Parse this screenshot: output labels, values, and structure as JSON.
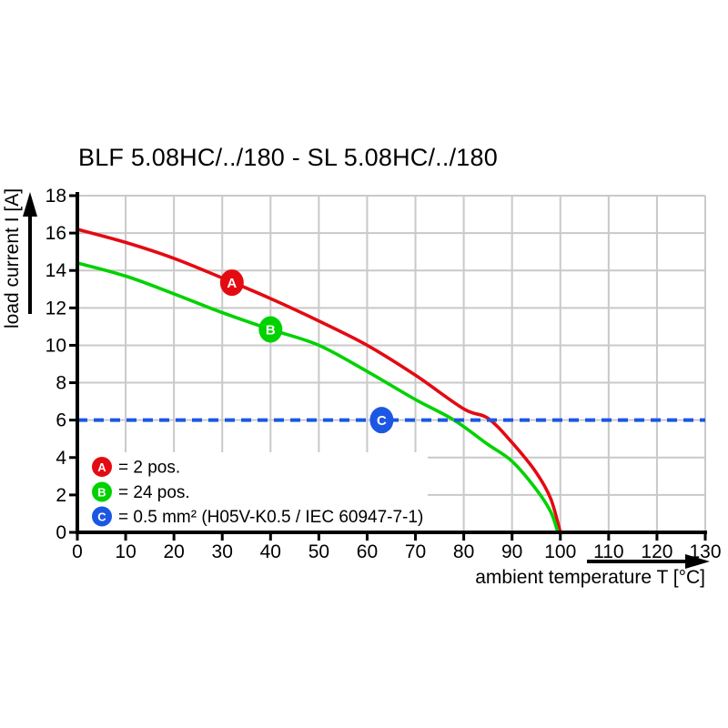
{
  "title": "BLF 5.08HC/../180 - SL 5.08HC/../180",
  "chart_data": {
    "type": "line",
    "title": "BLF 5.08HC/../180 - SL 5.08HC/../180",
    "xlabel": "ambient temperature T [°C]",
    "ylabel": "load current I [A]",
    "xlim": [
      0,
      130
    ],
    "ylim": [
      0,
      18
    ],
    "x_ticks": [
      0,
      10,
      20,
      30,
      40,
      50,
      60,
      70,
      80,
      90,
      100,
      110,
      120,
      130
    ],
    "y_ticks": [
      0,
      2,
      4,
      6,
      8,
      10,
      12,
      14,
      16,
      18
    ],
    "grid": true,
    "legend_position": "inside-bottom-left",
    "series": [
      {
        "name": "A",
        "legend": "= 2 pos.",
        "color": "#e40a12",
        "style": "curve",
        "points": [
          [
            0,
            16.2
          ],
          [
            10,
            15.5
          ],
          [
            20,
            14.65
          ],
          [
            30,
            13.6
          ],
          [
            40,
            12.5
          ],
          [
            50,
            11.3
          ],
          [
            60,
            10.0
          ],
          [
            70,
            8.4
          ],
          [
            80,
            6.6
          ],
          [
            85,
            6.1
          ],
          [
            90,
            4.8
          ],
          [
            95,
            3.2
          ],
          [
            98,
            1.8
          ],
          [
            100,
            0
          ]
        ],
        "marker": [
          32,
          13.35
        ]
      },
      {
        "name": "B",
        "legend": "= 24 pos.",
        "color": "#00d200",
        "style": "curve",
        "points": [
          [
            0,
            14.4
          ],
          [
            10,
            13.7
          ],
          [
            20,
            12.75
          ],
          [
            30,
            11.75
          ],
          [
            40,
            10.85
          ],
          [
            50,
            10.0
          ],
          [
            60,
            8.6
          ],
          [
            70,
            7.1
          ],
          [
            78,
            6.0
          ],
          [
            85,
            4.7
          ],
          [
            90,
            3.8
          ],
          [
            95,
            2.3
          ],
          [
            98,
            1.1
          ],
          [
            99.5,
            0
          ]
        ],
        "marker": [
          63,
          6
        ]
      },
      {
        "name": "C",
        "legend": "= 0.5 mm² (H05V-K0.5 / IEC 60947-7-1)",
        "color": "#1c57e4",
        "style": "dashed-horizontal",
        "value": 6,
        "marker": [
          63,
          6
        ]
      }
    ],
    "series_b_marker": [
      40,
      10.85
    ]
  },
  "colors": {
    "grid": "#c9c9c9",
    "axis": "#000000",
    "background": "#ffffff",
    "marker_text": "#ffffff"
  }
}
